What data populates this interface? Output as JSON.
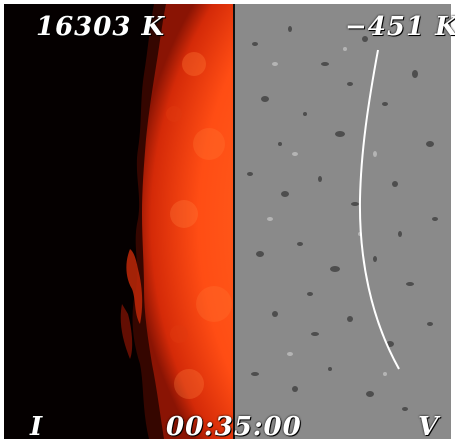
{
  "labels": {
    "intensity_temperature": "16303 K",
    "velocity_temperature": "−451 K",
    "intensity_channel": "I",
    "velocity_channel": "V",
    "timestamp": "00:35:00"
  },
  "colors": {
    "disk_orange": "#ff5a1e",
    "disk_edge": "#a01808",
    "background_black": "#050000",
    "doppler_gray": "#8a8a8a",
    "limb_line": "#ffffff"
  }
}
